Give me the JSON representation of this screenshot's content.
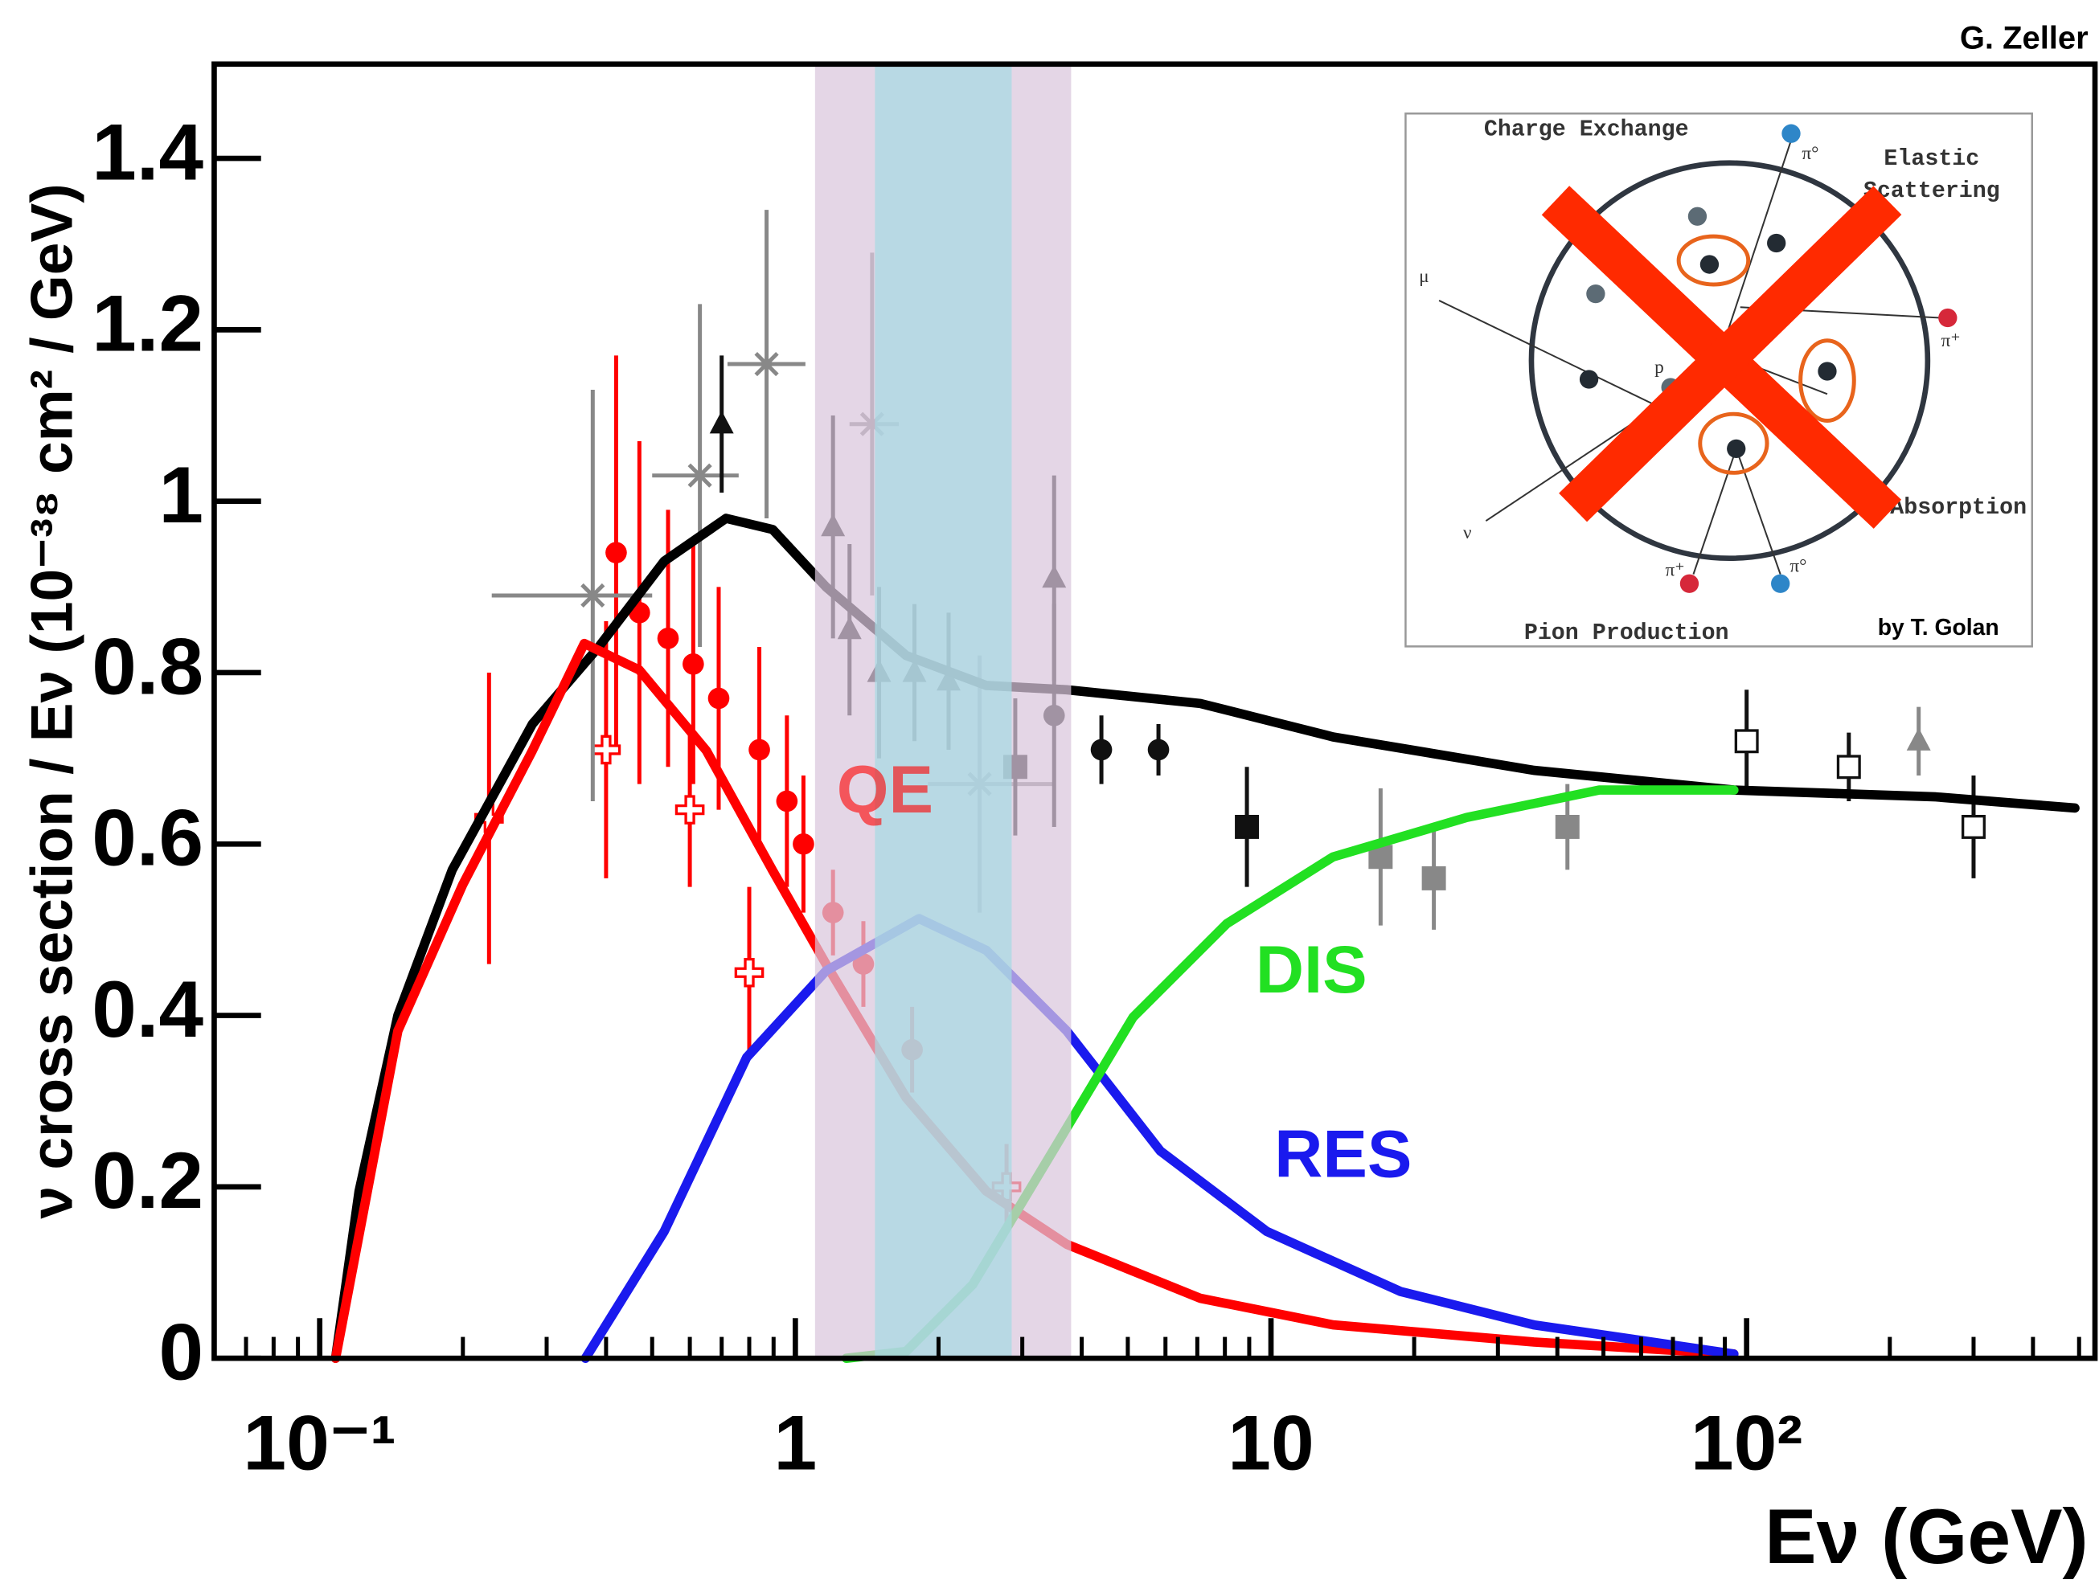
{
  "chart_data": {
    "type": "line",
    "log_x": true,
    "credit": "G. Zeller",
    "xlabel": "Eν (GeV)",
    "ylabel": "ν cross section / Eν (10⁻³⁸ cm² / GeV)",
    "xlim": [
      0.06,
      540
    ],
    "ylim": [
      0,
      1.51
    ],
    "xticks": [
      {
        "value": 0.1,
        "label": "10⁻¹"
      },
      1,
      10,
      {
        "value": 100,
        "label": "10²"
      }
    ],
    "xminor": [
      0.07,
      0.08,
      0.09,
      0.2,
      0.3,
      0.4,
      0.5,
      0.6,
      0.7,
      0.8,
      0.9,
      2,
      3,
      4,
      5,
      6,
      7,
      8,
      9,
      20,
      30,
      40,
      50,
      60,
      70,
      80,
      90,
      200,
      300,
      400,
      500
    ],
    "yticks": [
      0,
      0.2,
      0.4,
      0.6,
      0.8,
      1,
      1.2,
      1.4
    ],
    "bands": [
      {
        "xmin": 1.1,
        "xmax": 3.8,
        "color": "#d9c6dc"
      },
      {
        "xmin": 1.47,
        "xmax": 2.85,
        "color": "#a6d9e3"
      }
    ],
    "series": [
      {
        "color": "#000000",
        "x": [
          0.108,
          0.121,
          0.146,
          0.19,
          0.28,
          0.386,
          0.53,
          0.715,
          0.896,
          1.16,
          1.71,
          2.52,
          3.72,
          7.1,
          13.5,
          35.7,
          94,
          250,
          490
        ],
        "values": [
          0,
          0.195,
          0.4,
          0.57,
          0.74,
          0.83,
          0.93,
          0.98,
          0.967,
          0.9,
          0.82,
          0.785,
          0.78,
          0.764,
          0.725,
          0.686,
          0.663,
          0.655,
          0.642
        ]
      },
      {
        "name": "QE",
        "color": "#ff0000",
        "x": [
          0.108,
          0.146,
          0.2,
          0.28,
          0.36,
          0.47,
          0.65,
          0.896,
          1.16,
          1.71,
          2.52,
          3.72,
          7.1,
          13.5,
          35.7,
          94
        ],
        "values": [
          0,
          0.382,
          0.553,
          0.709,
          0.834,
          0.803,
          0.709,
          0.569,
          0.46,
          0.304,
          0.195,
          0.133,
          0.07,
          0.039,
          0.019,
          0.005
        ]
      },
      {
        "name": "RES",
        "color": "#1a1aee",
        "x": [
          0.362,
          0.53,
          0.79,
          1.16,
          1.82,
          2.52,
          3.72,
          5.85,
          9.8,
          18.7,
          35.7,
          94
        ],
        "values": [
          0,
          0.148,
          0.351,
          0.452,
          0.513,
          0.476,
          0.382,
          0.242,
          0.148,
          0.078,
          0.039,
          0.005
        ]
      },
      {
        "name": "DIS",
        "color": "#22e022",
        "x": [
          1.28,
          1.71,
          2.36,
          3.48,
          5.13,
          8.07,
          13.5,
          25.8,
          49,
          94
        ],
        "values": [
          0,
          0.008,
          0.086,
          0.242,
          0.398,
          0.507,
          0.585,
          0.631,
          0.663,
          0.663
        ]
      }
    ],
    "points": [
      {
        "color": "#ff0000",
        "marker": "circle",
        "x": [
          0.42,
          0.47,
          0.54,
          0.61,
          0.69,
          0.84,
          0.96,
          1.04,
          1.2,
          1.39,
          1.76
        ],
        "values": [
          0.94,
          0.87,
          0.84,
          0.81,
          0.77,
          0.71,
          0.65,
          0.6,
          0.52,
          0.46,
          0.36
        ],
        "errors": [
          0.23,
          0.2,
          0.15,
          0.14,
          0.13,
          0.12,
          0.1,
          0.08,
          0.05,
          0.05,
          0.05
        ]
      },
      {
        "color": "#ff0000",
        "marker": "opencross",
        "x": [
          0.227,
          0.4,
          0.6,
          0.8,
          2.78
        ],
        "values": [
          0.63,
          0.71,
          0.64,
          0.45,
          0.2
        ],
        "errors": [
          0.17,
          0.15,
          0.09,
          0.1,
          0.05
        ]
      },
      {
        "color": "#888888",
        "marker": "star",
        "x": [
          0.375,
          0.63,
          0.87,
          1.45,
          2.44
        ],
        "values": [
          0.89,
          1.03,
          1.16,
          1.09,
          0.67
        ],
        "errors": [
          0.24,
          0.2,
          0.18,
          0.2,
          0.15
        ],
        "xlo": [
          0.23,
          0.5,
          0.72,
          1.3,
          1.9
        ],
        "xhi": [
          0.5,
          0.76,
          1.05,
          1.65,
          3.5
        ]
      },
      {
        "color": "#888888",
        "marker": "square",
        "x": [
          17,
          22,
          42
        ],
        "values": [
          0.585,
          0.56,
          0.62
        ],
        "errors": [
          0.08,
          0.06,
          0.05
        ]
      },
      {
        "color": "#111111",
        "marker": "triangle",
        "x": [
          0.7,
          1.2,
          1.3,
          1.5,
          1.78,
          2.1,
          3.5
        ],
        "values": [
          1.09,
          0.97,
          0.85,
          0.8,
          0.8,
          0.79,
          0.91
        ],
        "errors": [
          0.08,
          0.13,
          0.1,
          0.1,
          0.08,
          0.08,
          0.12
        ]
      },
      {
        "color": "#111111",
        "marker": "circle",
        "x": [
          3.5,
          4.4,
          5.8
        ],
        "values": [
          0.75,
          0.71,
          0.71
        ],
        "errors": [
          0.13,
          0.04,
          0.03
        ]
      },
      {
        "color": "#111111",
        "marker": "square",
        "x": [
          2.9,
          8.9
        ],
        "values": [
          0.69,
          0.62
        ],
        "errors": [
          0.08,
          0.07
        ]
      },
      {
        "color": "#111111",
        "marker": "opensquare",
        "x": [
          100,
          164,
          300
        ],
        "values": [
          0.72,
          0.69,
          0.62
        ],
        "errors": [
          0.06,
          0.04,
          0.06
        ]
      },
      {
        "color": "#888888",
        "marker": "triangle",
        "x": [
          230
        ],
        "values": [
          0.72
        ],
        "errors": [
          0.04
        ]
      }
    ]
  },
  "inset": {
    "charge": "Charge Exchange",
    "elastic1": "Elastic",
    "elastic2": "Scattering",
    "absorption": "Absorption",
    "pion": "Pion Production",
    "credit": "by T. Golan",
    "mu": "μ",
    "nu": "ν",
    "p": "p",
    "pi0a": "π°",
    "pi0b": "π°",
    "pipa": "π⁺",
    "pipb": "π⁺"
  }
}
